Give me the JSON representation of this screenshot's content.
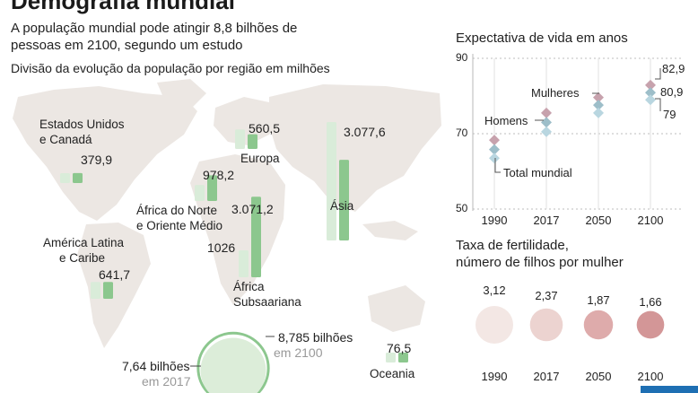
{
  "header": {
    "title": "Demografia mundial",
    "subtitle": "A população mundial pode atingir 8,8 bilhões de pessoas em 2100, segundo um estudo",
    "map_label": "Divisão da evolução da população por região em milhões"
  },
  "regions": [
    {
      "name_line1": "Estados Unidos",
      "name_line2": "e Canadá",
      "value_2017": "",
      "value_2100": "379,9"
    },
    {
      "name_line1": "Europa",
      "name_line2": "",
      "value_2017": "",
      "value_2100": "560,5"
    },
    {
      "name_line1": "Ásia",
      "name_line2": "",
      "value_2017": "",
      "value_2100": "3.077,6"
    },
    {
      "name_line1": "África do Norte",
      "name_line2": "e Oriente Médio",
      "value_2017": "",
      "value_2100": "978,2"
    },
    {
      "name_line1": "África",
      "name_line2": "Subsaariana",
      "value_2017": "1026",
      "value_2100": "3.071,2"
    },
    {
      "name_line1": "América Latina",
      "name_line2": "e Caribe",
      "value_2017": "",
      "value_2100": "641,7"
    },
    {
      "name_line1": "Oceania",
      "name_line2": "",
      "value_2017": "",
      "value_2100": "76,5"
    }
  ],
  "world": {
    "label_2017": "7,64 bilhões",
    "year_2017": "em 2017",
    "label_2100": "8,785 bilhões",
    "year_2100": "em 2100"
  },
  "life": {
    "title": "Expectativa de vida em anos",
    "ticks": [
      "90",
      "70",
      "50"
    ],
    "years": [
      "1990",
      "2017",
      "2050",
      "2100"
    ],
    "label_women": "Mulheres",
    "label_men": "Homens",
    "label_total": "Total mundial",
    "v_women_2100": "82,9",
    "v_total_2100": "80,9",
    "v_men_2100": "79"
  },
  "fertility": {
    "title_line1": "Taxa de fertilidade,",
    "title_line2": "número de filhos por mulher",
    "values": [
      "3,12",
      "2,37",
      "1,87",
      "1,66"
    ],
    "years": [
      "1990",
      "2017",
      "2050",
      "2100"
    ]
  },
  "chart_data": [
    {
      "type": "bar",
      "title": "Divisão da evolução da população por região em milhões",
      "categories": [
        "Estados Unidos e Canadá",
        "Europa",
        "Ásia",
        "África do Norte e Oriente Médio",
        "África Subsaariana",
        "América Latina e Caribe",
        "Oceania"
      ],
      "series": [
        {
          "name": "2017",
          "values": [
            360,
            745,
            4520,
            610,
            1026,
            640,
            40
          ]
        },
        {
          "name": "2100",
          "values": [
            379.9,
            560.5,
            3077.6,
            978.2,
            3071.2,
            641.7,
            76.5
          ]
        }
      ],
      "colors": {
        "2017": "#d9ecd9",
        "2100": "#8cc78e"
      }
    },
    {
      "type": "scatter",
      "title": "Expectativa de vida em anos",
      "x": [
        "1990",
        "2017",
        "2050",
        "2100"
      ],
      "ylim": [
        50,
        90
      ],
      "yticks": [
        50,
        70,
        90
      ],
      "series": [
        {
          "name": "Mulheres",
          "values": [
            68.3,
            75.5,
            79.6,
            82.9
          ],
          "color": "#c7a2ad"
        },
        {
          "name": "Total mundial",
          "values": [
            65.8,
            73,
            77.6,
            80.9
          ],
          "color": "#9dbec9"
        },
        {
          "name": "Homens",
          "values": [
            63.5,
            70.5,
            75.5,
            79
          ],
          "color": "#b9d6e0"
        }
      ]
    },
    {
      "type": "scatter",
      "title": "Taxa de fertilidade, número de filhos por mulher",
      "x": [
        "1990",
        "2017",
        "2050",
        "2100"
      ],
      "values": [
        3.12,
        2.37,
        1.87,
        1.66
      ],
      "colors": [
        "#f3e7e4",
        "#ecd3d0",
        "#deabab",
        "#d39697"
      ]
    }
  ]
}
